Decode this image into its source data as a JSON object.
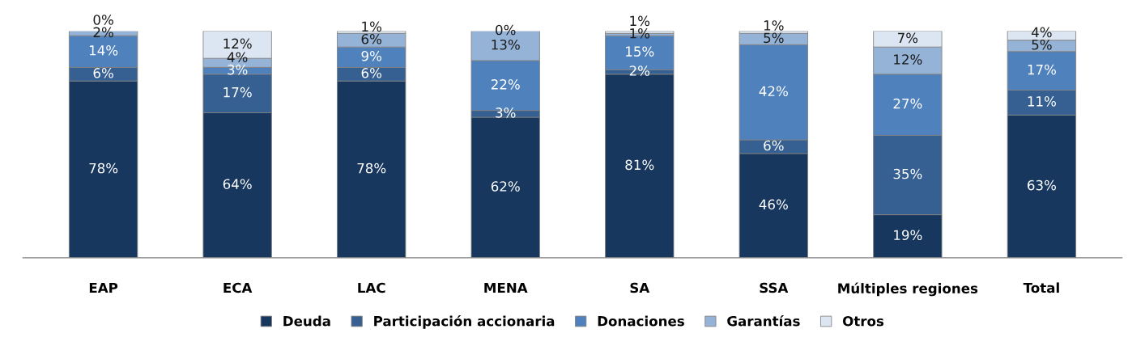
{
  "chart_data": {
    "type": "bar",
    "stacked": true,
    "legend": "bottom",
    "tick_labels": "x",
    "categories": [
      "EAP",
      "ECA",
      "LAC",
      "MENA",
      "SA",
      "SSA",
      "Múltiples regiones",
      "Total"
    ],
    "series": [
      {
        "name": "Deuda",
        "color": "#17375e",
        "values": [
          78,
          64,
          78,
          62,
          81,
          46,
          19,
          63
        ],
        "value_labels": [
          "78%",
          "64%",
          "78%",
          "62%",
          "81%",
          "46%",
          "19%",
          "63%"
        ]
      },
      {
        "name": "Participación accionaria",
        "color": "#366092",
        "values": [
          6,
          17,
          6,
          3,
          2,
          6,
          35,
          11
        ],
        "value_labels": [
          "6%",
          "17%",
          "6%",
          "3%",
          "2%",
          "6%",
          "35%",
          "11%"
        ]
      },
      {
        "name": "Donaciones",
        "color": "#4f81bd",
        "values": [
          14,
          3,
          9,
          22,
          15,
          42,
          27,
          17
        ],
        "value_labels": [
          "14%",
          "3%",
          "9%",
          "22%",
          "15%",
          "42%",
          "27%",
          "17%"
        ]
      },
      {
        "name": "Garantías",
        "color": "#95b3d7",
        "values": [
          2,
          4,
          6,
          13,
          1,
          5,
          12,
          5
        ],
        "value_labels": [
          "2%",
          "4%",
          "6%",
          "13%",
          "1%",
          "5%",
          "12%",
          "5%"
        ]
      },
      {
        "name": "Otros",
        "color": "#dce6f2",
        "values": [
          0,
          12,
          1,
          0,
          1,
          1,
          7,
          4
        ],
        "value_labels": [
          "0%",
          "12%",
          "1%",
          "0%",
          "1%",
          "1%",
          "7%",
          "4%"
        ]
      }
    ]
  }
}
